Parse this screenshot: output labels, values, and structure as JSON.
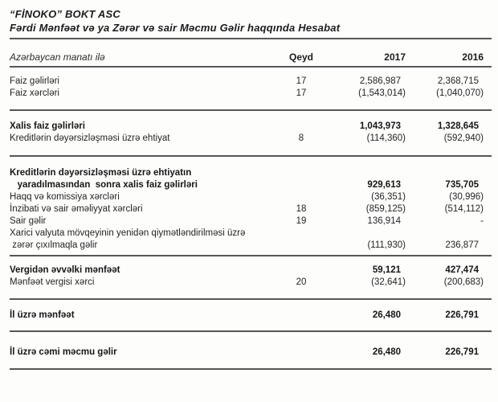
{
  "header": {
    "company": "“FİNOKO” BOKT ASC",
    "title": "Fərdi Mənfəət və ya Zərər və sair Məcmu Gəlir haqqında Hesabat"
  },
  "table": {
    "currency_note": "Azərbaycan manatı ilə",
    "columns": {
      "note": "Qeyd",
      "y2017": "2017",
      "y2016": "2016"
    },
    "items": [
      {
        "type": "row",
        "gap": 10,
        "bold": false,
        "lines": [
          "Faiz gəlirləri"
        ],
        "qeyd": "17",
        "y2017": "2,586,987",
        "y2016": "2,368,715"
      },
      {
        "type": "row",
        "gap": 0,
        "bold": false,
        "lines": [
          "Faiz xərcləri"
        ],
        "qeyd": "17",
        "y2017": "(1,543,014)",
        "y2016": "(1,040,070)"
      },
      {
        "type": "rule",
        "gap": 12
      },
      {
        "type": "row",
        "gap": 12,
        "bold": true,
        "lines": [
          "Xalis faiz gəlirləri"
        ],
        "qeyd": "",
        "y2017": "1,043,973",
        "y2016": "1,328,645"
      },
      {
        "type": "row",
        "gap": 0,
        "bold": false,
        "lines": [
          "Kreditlərin dəyərsizləşməsi üzrə ehtiyat"
        ],
        "qeyd": "8",
        "y2017": "(114,360)",
        "y2016": "(592,940)"
      },
      {
        "type": "rule",
        "gap": 13
      },
      {
        "type": "row",
        "gap": 13,
        "bold": true,
        "lines": [
          "Kreditlərin dəyərsizləşməsi üzrə ehtiyatın",
          "   yaradılmasından  sonra xalis faiz gəlirləri"
        ],
        "qeyd": "",
        "y2017": "929,613",
        "y2016": "735,705"
      },
      {
        "type": "row",
        "gap": 0,
        "bold": false,
        "lines": [
          "Haqq və komissiya xərcləri"
        ],
        "qeyd": "",
        "y2017": "(36,351)",
        "y2016": "(30,996)"
      },
      {
        "type": "row",
        "gap": 0,
        "bold": false,
        "lines": [
          "İnzibati və sair əməliyyat xərcləri"
        ],
        "qeyd": "18",
        "y2017": "(859,125)",
        "y2016": "(514,112)"
      },
      {
        "type": "row",
        "gap": 0,
        "bold": false,
        "lines": [
          "Sair gəlir"
        ],
        "qeyd": "19",
        "y2017": "136,914",
        "y2016": "-"
      },
      {
        "type": "row",
        "gap": 0,
        "bold": false,
        "lines": [
          "Xarici valyuta mövqeyinin yenidən qiymətləndirilməsi üzrə",
          " zərər çıxılmaqla gəlir"
        ],
        "qeyd": "",
        "y2017": "(111,930)",
        "y2016": "236,877"
      },
      {
        "type": "rule",
        "gap": 4
      },
      {
        "type": "row",
        "gap": 10,
        "bold": true,
        "lines": [
          "Vergidən əvvəlki mənfəət"
        ],
        "qeyd": "",
        "y2017": "59,121",
        "y2016": "427,474"
      },
      {
        "type": "row",
        "gap": 0,
        "bold": false,
        "lines": [
          "Mənfəət vergisi xərci"
        ],
        "qeyd": "20",
        "y2017": "(32,641)",
        "y2016": "(200,683)"
      },
      {
        "type": "rule",
        "gap": 12
      },
      {
        "type": "row",
        "gap": 12,
        "bold": true,
        "lines": [
          "İl üzrə mənfəət"
        ],
        "qeyd": "",
        "y2017": "26,480",
        "y2016": "226,791"
      },
      {
        "type": "rule",
        "gap": 11
      },
      {
        "type": "row",
        "gap": 18,
        "bold": true,
        "lines": [
          "İl üzrə cəmi məcmu gəlir"
        ],
        "qeyd": "",
        "y2017": "26,480",
        "y2016": "226,791"
      },
      {
        "type": "rule",
        "gap": 12
      }
    ]
  }
}
